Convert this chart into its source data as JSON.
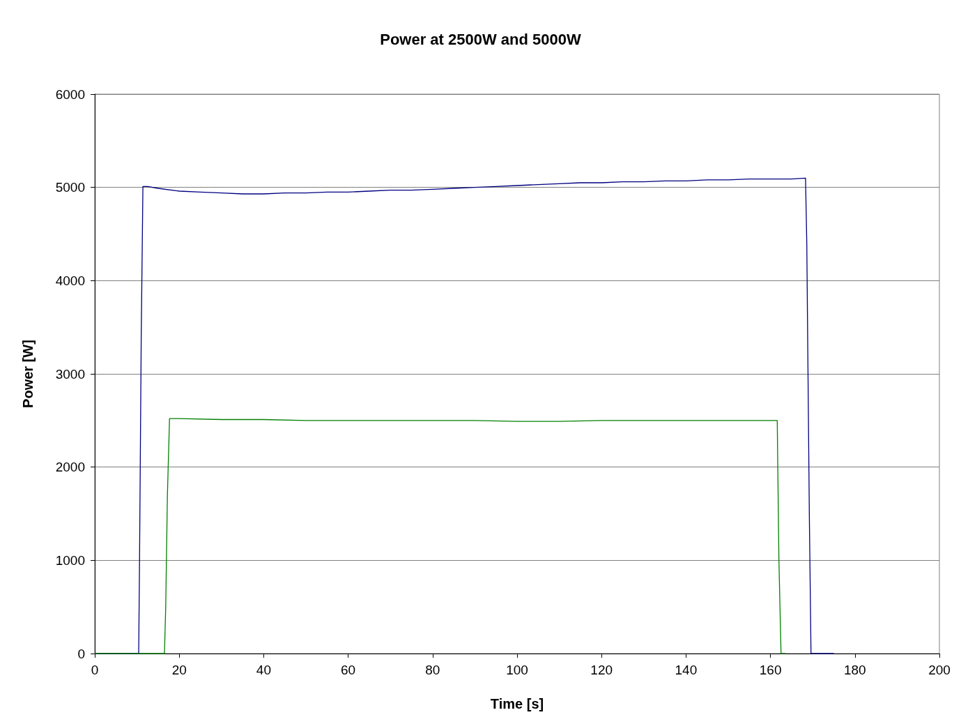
{
  "chart_data": {
    "type": "line",
    "title": "Power at 2500W and 5000W",
    "xlabel": "Time [s]",
    "ylabel": "Power [W]",
    "xlim": [
      0,
      200
    ],
    "xticks": [
      0,
      20,
      40,
      60,
      80,
      100,
      120,
      140,
      160,
      180,
      200
    ],
    "ylim": [
      0,
      6000
    ],
    "yticks": [
      0,
      1000,
      2000,
      3000,
      4000,
      5000,
      6000
    ],
    "grid": "y",
    "marker": "none",
    "line_style": "solid",
    "series": [
      {
        "color": "#000080",
        "x": [
          0,
          10.4,
          10.6,
          11.0,
          11.4,
          12.5,
          15,
          20,
          25,
          30,
          35,
          40,
          45,
          50,
          55,
          60,
          65,
          70,
          75,
          80,
          85,
          90,
          95,
          100,
          105,
          110,
          115,
          120,
          125,
          130,
          135,
          140,
          145,
          150,
          155,
          160,
          165,
          168.3,
          168.6,
          169.2,
          169.6,
          175
        ],
        "values": [
          0,
          0,
          1000,
          3400,
          5010,
          5010,
          4990,
          4960,
          4950,
          4940,
          4930,
          4930,
          4940,
          4940,
          4950,
          4950,
          4960,
          4970,
          4970,
          4980,
          4990,
          5000,
          5010,
          5020,
          5030,
          5040,
          5050,
          5050,
          5060,
          5060,
          5070,
          5070,
          5080,
          5080,
          5090,
          5090,
          5090,
          5100,
          4400,
          1500,
          0,
          0
        ]
      },
      {
        "color": "#008000",
        "x": [
          0,
          16.5,
          16.8,
          17.2,
          17.7,
          20,
          30,
          40,
          50,
          60,
          70,
          80,
          90,
          100,
          110,
          120,
          130,
          140,
          150,
          160,
          161.6,
          162.0,
          162.5,
          163.5
        ],
        "values": [
          0,
          0,
          500,
          1700,
          2520,
          2520,
          2510,
          2510,
          2500,
          2500,
          2500,
          2500,
          2500,
          2490,
          2490,
          2500,
          2500,
          2500,
          2500,
          2500,
          2500,
          1000,
          0,
          0
        ]
      }
    ]
  }
}
